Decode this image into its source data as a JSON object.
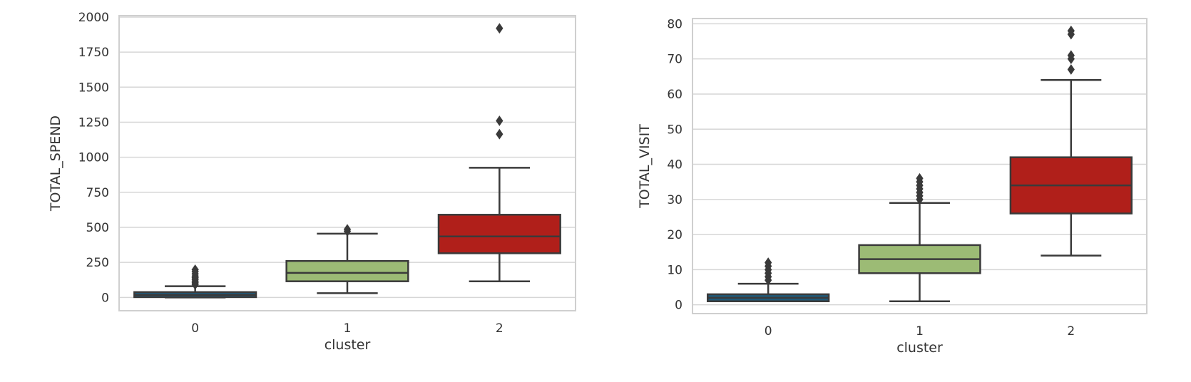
{
  "chart_data": [
    {
      "type": "box",
      "xlabel": "cluster",
      "ylabel": "TOTAL_SPEND",
      "categories": [
        "0",
        "1",
        "2"
      ],
      "ylim": [
        -95,
        2010
      ],
      "yticks": [
        0,
        250,
        500,
        750,
        1000,
        1250,
        1500,
        1750,
        2000
      ],
      "grid": true,
      "boxes": [
        {
          "category": "0",
          "color": "#1f5a7a",
          "whisker_low": 0,
          "q1": 2,
          "median": 18,
          "q3": 38,
          "whisker_high": 80,
          "outliers": [
            92,
            104,
            116,
            128,
            140,
            152,
            168,
            184,
            198
          ]
        },
        {
          "category": "1",
          "color": "#9cbb75",
          "whisker_low": 30,
          "q1": 115,
          "median": 175,
          "q3": 260,
          "whisker_high": 455,
          "outliers": [
            472,
            486
          ]
        },
        {
          "category": "2",
          "color": "#b01f1a",
          "whisker_low": 115,
          "q1": 315,
          "median": 435,
          "q3": 590,
          "whisker_high": 925,
          "outliers": [
            1165,
            1260,
            1920
          ]
        }
      ]
    },
    {
      "type": "box",
      "xlabel": "cluster",
      "ylabel": "TOTAL_VISIT",
      "categories": [
        "0",
        "1",
        "2"
      ],
      "ylim": [
        -2.5,
        81.5
      ],
      "yticks": [
        0,
        10,
        20,
        30,
        40,
        50,
        60,
        70,
        80
      ],
      "grid": true,
      "boxes": [
        {
          "category": "0",
          "color": "#1f5a7a",
          "whisker_low": 1,
          "q1": 1,
          "median": 2,
          "q3": 3,
          "whisker_high": 6,
          "outliers": [
            7,
            8,
            9,
            10,
            11,
            12
          ]
        },
        {
          "category": "1",
          "color": "#9cbb75",
          "whisker_low": 1,
          "q1": 9,
          "median": 13,
          "q3": 17,
          "whisker_high": 29,
          "outliers": [
            30,
            31,
            32,
            33,
            34,
            35,
            36
          ]
        },
        {
          "category": "2",
          "color": "#b01f1a",
          "whisker_low": 14,
          "q1": 26,
          "median": 34,
          "q3": 42,
          "whisker_high": 64,
          "outliers": [
            67,
            70,
            71,
            77,
            78
          ]
        }
      ]
    }
  ]
}
